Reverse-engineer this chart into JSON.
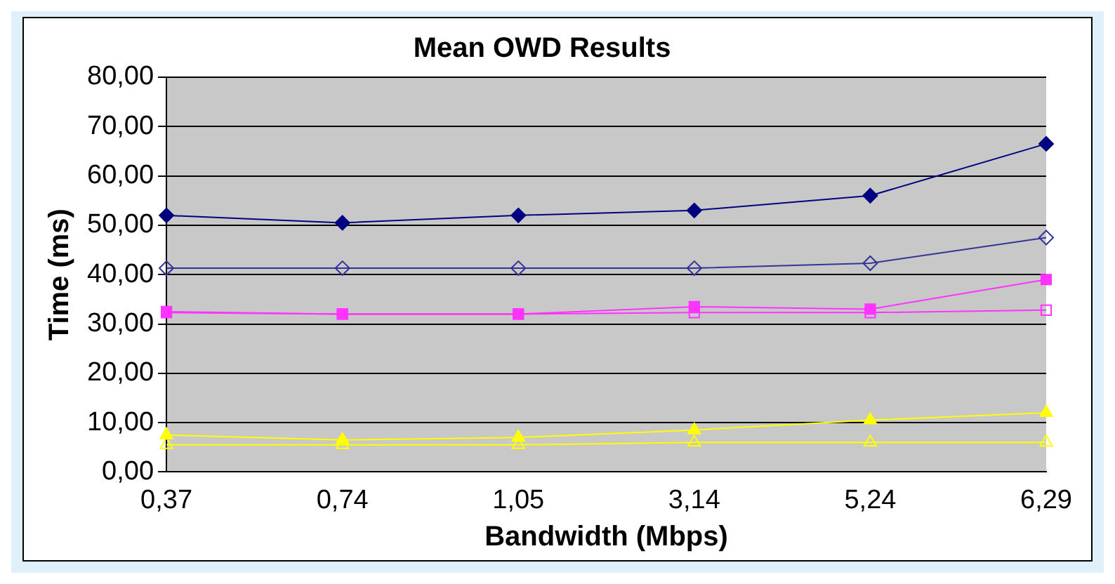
{
  "chart_data": {
    "type": "line",
    "title": "Mean OWD Results",
    "xlabel": "Bandwidth (Mbps)",
    "ylabel": "Time (ms)",
    "categories": [
      "0,37",
      "0,74",
      "1,05",
      "3,14",
      "5,24",
      "6,29"
    ],
    "series": [
      {
        "color": "#000080",
        "marker": "diamond",
        "values": [
          52,
          50.5,
          52,
          53,
          56,
          66.5
        ]
      },
      {
        "color": "#333399",
        "marker": "diamond",
        "values": [
          41.3,
          41.3,
          41.3,
          41.3,
          42.3,
          47.5
        ]
      },
      {
        "color": "#ff33ff",
        "marker": "square",
        "values": [
          32.3,
          32,
          32,
          33.5,
          33,
          39
        ]
      },
      {
        "color": "#ff33ff",
        "marker": "square",
        "values": [
          32.5,
          32,
          32,
          32.3,
          32.3,
          32.8
        ]
      },
      {
        "color": "#ffff00",
        "marker": "triangle",
        "values": [
          7.5,
          6.5,
          7,
          8.5,
          10.5,
          12
        ]
      },
      {
        "color": "#ffff00",
        "marker": "triangle",
        "values": [
          5.5,
          5.5,
          5.5,
          6,
          6,
          6
        ]
      }
    ],
    "ylim": [
      0,
      80
    ],
    "yticks": [
      {
        "value": 0,
        "label": "0,00"
      },
      {
        "value": 10,
        "label": "10,00"
      },
      {
        "value": 20,
        "label": "20,00"
      },
      {
        "value": 30,
        "label": "30,00"
      },
      {
        "value": 40,
        "label": "40,00"
      },
      {
        "value": 50,
        "label": "50,00"
      },
      {
        "value": 60,
        "label": "60,00"
      },
      {
        "value": 70,
        "label": "70,00"
      },
      {
        "value": 80,
        "label": "80,00"
      }
    ],
    "grid": "y",
    "legend": false,
    "line_style": "solid"
  }
}
